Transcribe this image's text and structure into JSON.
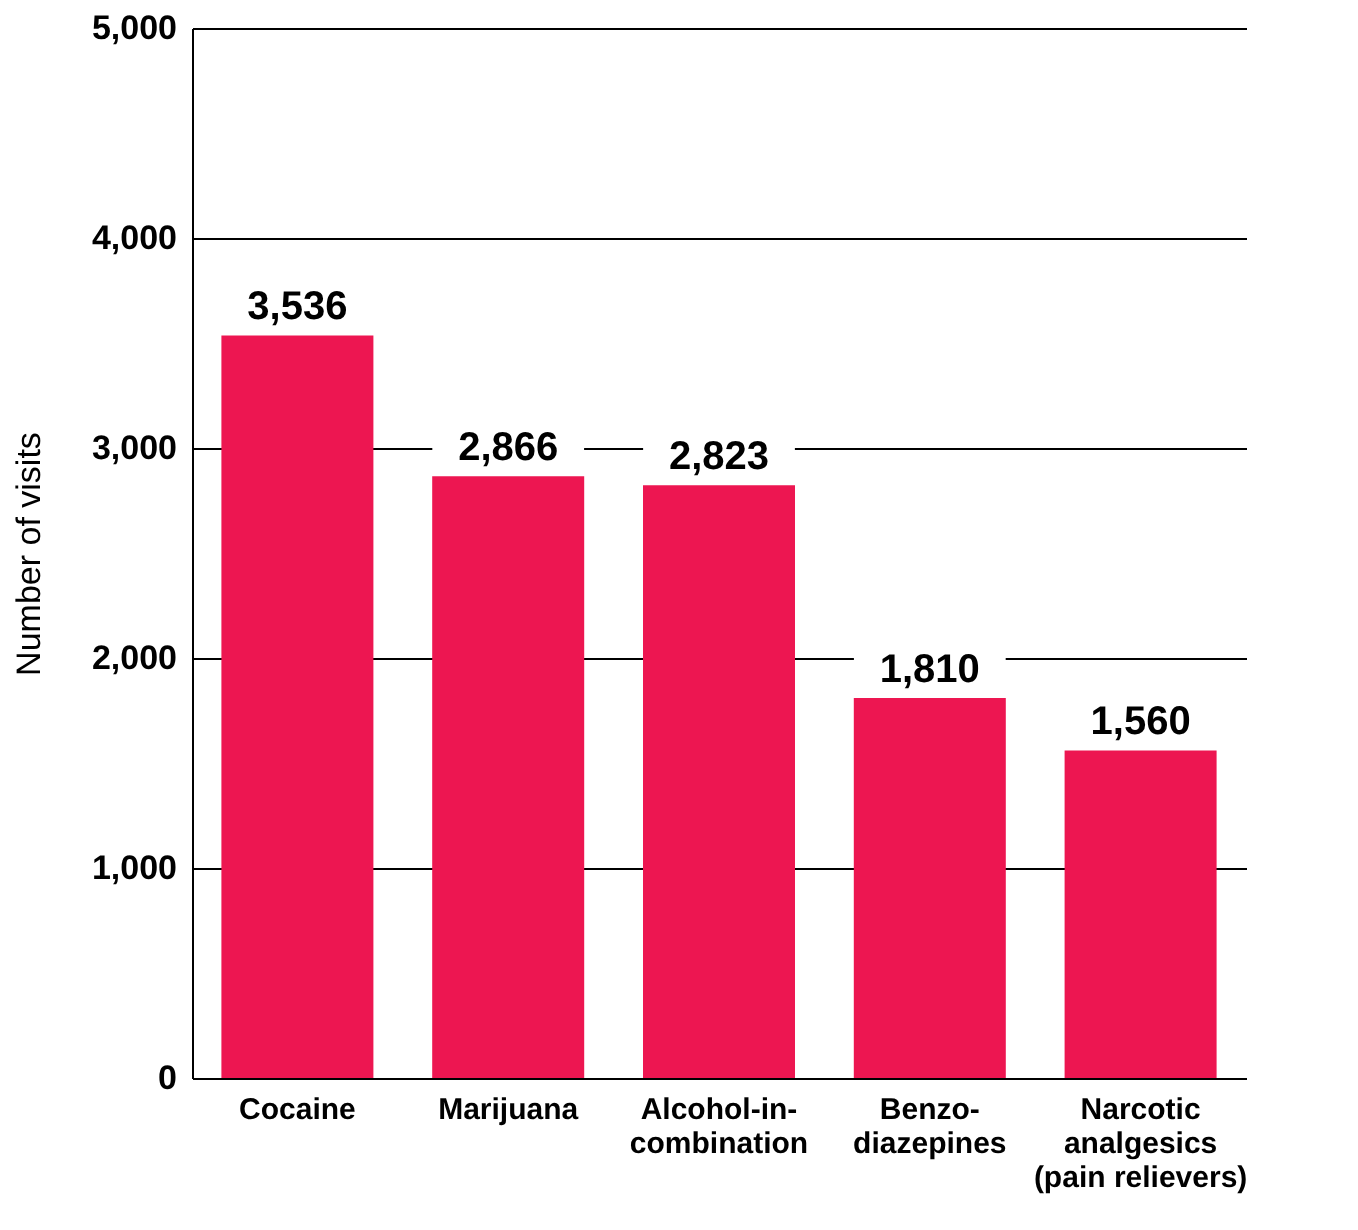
{
  "chart_data": {
    "type": "bar",
    "ylabel": "Number of visits",
    "categories": [
      "Cocaine",
      "Marijuana",
      "Alcohol-in-\ncombination",
      "Benzo-\ndiazepines",
      "Narcotic\nanalgesics\n(pain relievers)"
    ],
    "values": [
      3536,
      2866,
      2823,
      1810,
      1560
    ],
    "value_labels": [
      "3,536",
      "2,866",
      "2,823",
      "1,810",
      "1,560"
    ],
    "color": "#ed1651",
    "ylim": [
      0,
      5000
    ],
    "yticks": [
      0,
      {
        "value": 1000,
        "label": "1,000"
      },
      {
        "value": 2000,
        "label": "2,000"
      },
      {
        "value": 3000,
        "label": "3,000"
      },
      {
        "value": 4000,
        "label": "4,000"
      },
      {
        "value": 5000,
        "label": "5,000"
      }
    ],
    "grid": "y"
  }
}
